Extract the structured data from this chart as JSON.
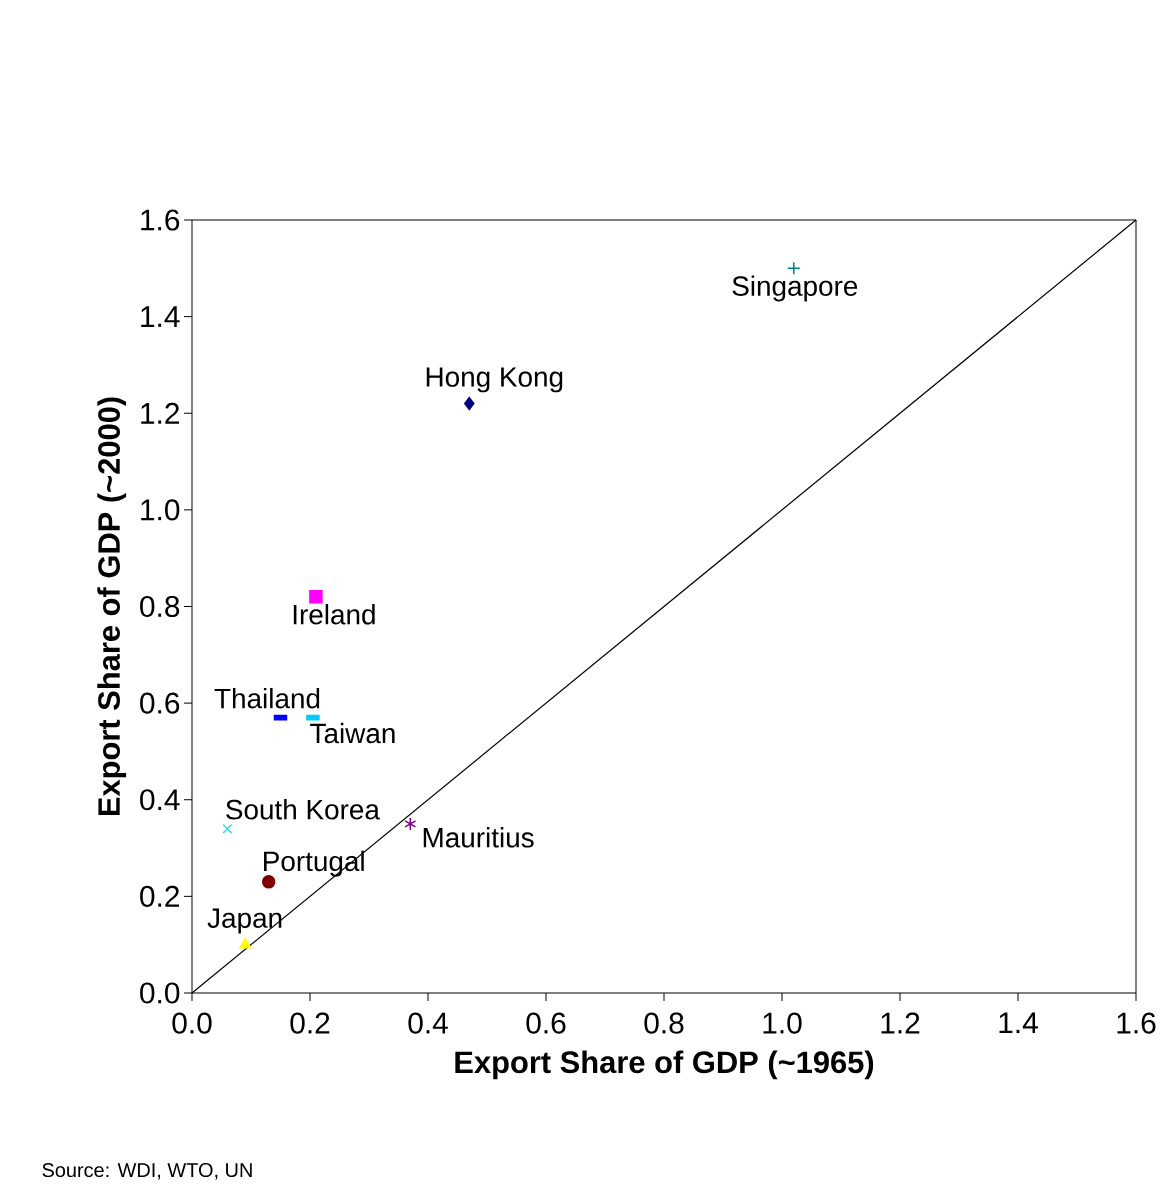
{
  "chart_data": {
    "type": "scatter",
    "xlabel": "Export Share of GDP (~1965)",
    "ylabel": "Export Share of GDP (~2000)",
    "xlim": [
      0,
      1.6
    ],
    "ylim": [
      0,
      1.6
    ],
    "xticks": [
      {
        "value": 0,
        "label": "0.0"
      },
      {
        "value": 0.2,
        "label": "0.2"
      },
      {
        "value": 0.4,
        "label": "0.4"
      },
      {
        "value": 0.6,
        "label": "0.6"
      },
      {
        "value": 0.8,
        "label": "0.8"
      },
      {
        "value": 1.0,
        "label": "1.0"
      },
      {
        "value": 1.2,
        "label": "1.2"
      },
      {
        "value": 1.4,
        "label": "1.4"
      },
      {
        "value": 1.6,
        "label": "1.6"
      }
    ],
    "yticks": [
      {
        "value": 0,
        "label": "0.0"
      },
      {
        "value": 0.2,
        "label": "0.2"
      },
      {
        "value": 0.4,
        "label": "0.4"
      },
      {
        "value": 0.6,
        "label": "0.6"
      },
      {
        "value": 0.8,
        "label": "0.8"
      },
      {
        "value": 1.0,
        "label": "1.0"
      },
      {
        "value": 1.2,
        "label": "1.2"
      },
      {
        "value": 1.4,
        "label": "1.4"
      },
      {
        "value": 1.6,
        "label": "1.6"
      }
    ],
    "series": [
      {
        "name": "Singapore",
        "color": "#008080",
        "marker": "plus",
        "x": [
          1.02
        ],
        "values": [
          1.5
        ]
      },
      {
        "name": "Hong Kong",
        "color": "#000080",
        "marker": "diamond",
        "x": [
          0.47
        ],
        "values": [
          1.22
        ]
      },
      {
        "name": "Ireland",
        "color": "#ff00ff",
        "marker": "square",
        "x": [
          0.21
        ],
        "values": [
          0.82
        ]
      },
      {
        "name": "Thailand",
        "color": "#0000ff",
        "marker": "square",
        "x": [
          0.15
        ],
        "values": [
          0.57
        ]
      },
      {
        "name": "Taiwan",
        "color": "#00ccff",
        "marker": "square",
        "x": [
          0.205
        ],
        "values": [
          0.57
        ]
      },
      {
        "name": "South Korea",
        "color": "#33dddd",
        "marker": "cross",
        "x": [
          0.06
        ],
        "values": [
          0.34
        ]
      },
      {
        "name": "Mauritius",
        "color": "#800080",
        "marker": "cross",
        "x": [
          0.37
        ],
        "values": [
          0.35
        ]
      },
      {
        "name": "Portugal",
        "color": "#800000",
        "marker": "circle",
        "x": [
          0.13
        ],
        "values": [
          0.23
        ]
      },
      {
        "name": "Japan",
        "color": "#ffff00",
        "marker": "triangle",
        "x": [
          0.09
        ],
        "values": [
          0.1
        ]
      },
      {
        "type": "line",
        "color": "#000000",
        "marker": "none",
        "x": [
          0,
          1.6
        ],
        "values": [
          0,
          1.6
        ]
      }
    ],
    "annotations": [
      "Source: WDI, WTO, UN"
    ]
  }
}
